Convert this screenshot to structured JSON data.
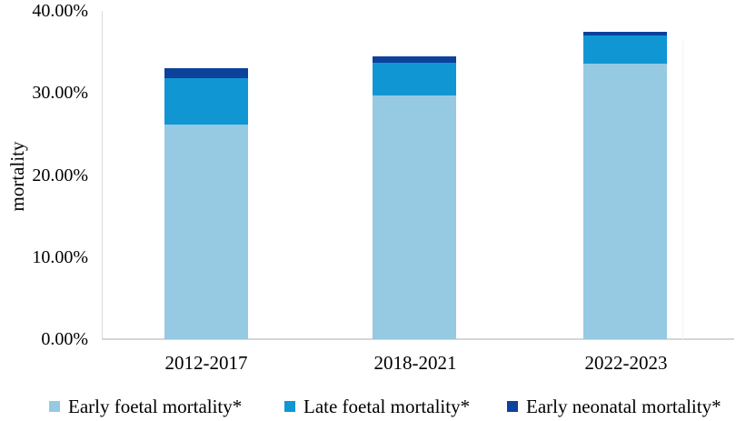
{
  "figure": {
    "y_axis_title": "mortality"
  },
  "chart_data": {
    "type": "bar",
    "stacked": true,
    "title": "",
    "xlabel": "",
    "ylabel": "mortality",
    "ylim": [
      0,
      40
    ],
    "ytick_values": [
      0,
      10,
      20,
      30,
      40
    ],
    "ytick_labels": [
      "0.00%",
      "10.00%",
      "20.00%",
      "30.00%",
      "40.00%"
    ],
    "grid": false,
    "legend_position": "bottom",
    "categories": [
      "2012-2017",
      "2018-2021",
      "2022-2023"
    ],
    "series": [
      {
        "name": "Early foetal mortality*",
        "color": "#96c9e2",
        "values": [
          26.1,
          29.7,
          33.6
        ]
      },
      {
        "name": "Late foetal mortality*",
        "color": "#1196d4",
        "values": [
          5.7,
          4.0,
          3.4
        ]
      },
      {
        "name": "Early neonatal mortality*",
        "color": "#0c419c",
        "values": [
          1.2,
          0.8,
          0.5
        ]
      }
    ],
    "totals": [
      33.0,
      34.5,
      37.5
    ]
  }
}
